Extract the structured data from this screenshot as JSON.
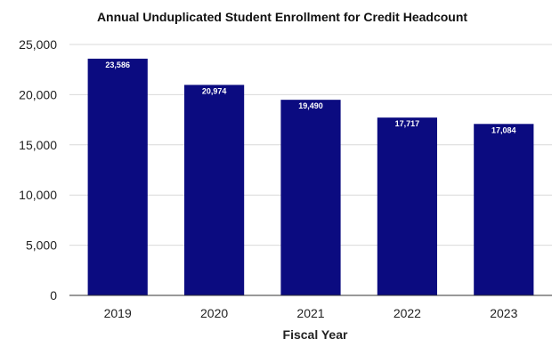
{
  "chart_data": {
    "type": "bar",
    "title": "Annual Unduplicated Student Enrollment for Credit Headcount",
    "xlabel": "Fiscal Year",
    "ylabel": "",
    "categories": [
      "2019",
      "2020",
      "2021",
      "2022",
      "2023"
    ],
    "values": [
      23586,
      20974,
      19490,
      17717,
      17084
    ],
    "data_labels": [
      "23,586",
      "20,974",
      "19,490",
      "17,717",
      "17,084"
    ],
    "ylim": [
      0,
      25000
    ],
    "yticks": [
      0,
      5000,
      10000,
      15000,
      20000,
      25000
    ],
    "ytick_labels": [
      "0",
      "5,000",
      "10,000",
      "15,000",
      "20,000",
      "25,000"
    ],
    "grid": true,
    "legend": "none",
    "colors": {
      "bar": "#0b0b80",
      "grid": "#d9d9d9",
      "axis": "#333333",
      "text": "#222222",
      "data_label": "#ffffff"
    }
  }
}
